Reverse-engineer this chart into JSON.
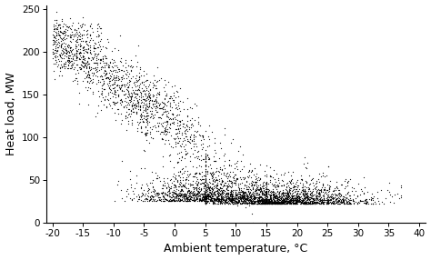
{
  "xlabel": "Ambient temperature, °C",
  "ylabel": "Heat load, MW",
  "xlim": [
    -21,
    41
  ],
  "ylim": [
    0,
    255
  ],
  "xticks": [
    -20,
    -15,
    -10,
    -5,
    0,
    5,
    10,
    15,
    20,
    25,
    30,
    35,
    40
  ],
  "yticks": [
    0,
    50,
    100,
    150,
    200,
    250
  ],
  "marker_size": 0.8,
  "marker_color": "black",
  "seed": 42,
  "background_color": "#ffffff",
  "xlabel_fontsize": 9,
  "ylabel_fontsize": 9,
  "tick_fontsize": 7.5
}
